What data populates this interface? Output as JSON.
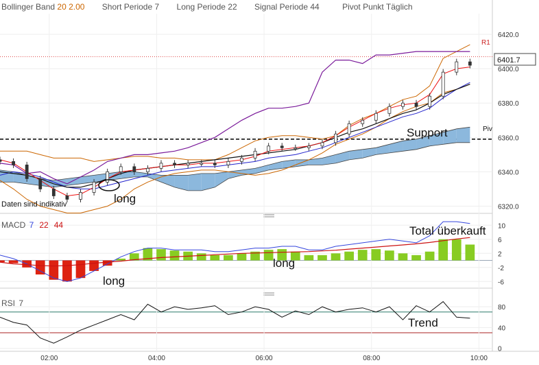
{
  "header": {
    "items": [
      {
        "name": "Bollinger Band",
        "values": [
          "20",
          "2.00"
        ]
      },
      {
        "name": "Short Periode",
        "values": [
          "7"
        ]
      },
      {
        "name": "Long Periode",
        "values": [
          "22"
        ]
      },
      {
        "name": "Signal Periode",
        "values": [
          "44"
        ]
      },
      {
        "name": "Pivot Punkt",
        "values": [
          "Täglich"
        ]
      }
    ]
  },
  "colors": {
    "candle": "#333333",
    "bb": "#cc6600",
    "ma_short": "#ee1111",
    "ma_long": "#2222cc",
    "kijun": "#111111",
    "purple": "#7a1a9a",
    "cloud_up": "#8cb8dd",
    "cloud_down": "#f0a0a0",
    "macd_pos": "#88cc22",
    "macd_neg": "#dd2211",
    "macd_line": "#3344dd",
    "signal_line": "#cc1111",
    "rsi_line": "#111111",
    "rsi_upper": "#2a7a6a",
    "rsi_lower": "#aa2222"
  },
  "price_panel": {
    "y_ticks": [
      6320,
      6340,
      6360,
      6380,
      6400,
      6420
    ],
    "y_tick_labels": [
      "6320.0",
      "6340.0",
      "6360.0",
      "6380.0",
      "6400.0",
      "6420.0"
    ],
    "ylim": [
      6317,
      6432
    ],
    "current_price": 6401.7,
    "current_price_label": "6401.7",
    "r1": {
      "label": "R1",
      "value": 6407
    },
    "pivot": {
      "label": "Piv",
      "value": 6359
    },
    "notes": {
      "disclaimer": "Daten sind indikativ"
    },
    "annotations": {
      "support": "Support",
      "long": "long"
    }
  },
  "macd_panel": {
    "label": "MACD",
    "params": [
      "7",
      "22",
      "44"
    ],
    "y_ticks": [
      -6,
      -2,
      2,
      6,
      10
    ],
    "y_tick_labels": [
      "-6",
      "-2",
      "2",
      "6",
      "10"
    ],
    "ylim": [
      -7.5,
      12
    ],
    "annotations": {
      "overbought": "Total überkauft",
      "long1": "long",
      "long2": "long"
    }
  },
  "rsi_panel": {
    "label": "RSI",
    "params": [
      "7"
    ],
    "y_ticks": [
      0,
      40,
      80
    ],
    "y_tick_labels": [
      "0",
      "40",
      "80"
    ],
    "ylim": [
      -3,
      100
    ],
    "upper": 70,
    "lower": 30,
    "annotations": {
      "trend": "Trend"
    }
  },
  "time_axis": {
    "start": "01:05",
    "end": "10:15",
    "ticks": [
      "02:00",
      "04:00",
      "06:00",
      "08:00",
      "10:00"
    ]
  },
  "chart_data": [
    {
      "type": "line",
      "title": "",
      "x": [
        "01:05",
        "01:20",
        "01:35",
        "01:50",
        "02:05",
        "02:20",
        "02:35",
        "02:50",
        "03:05",
        "03:20",
        "03:35",
        "03:50",
        "04:05",
        "04:20",
        "04:35",
        "04:50",
        "05:05",
        "05:20",
        "05:35",
        "05:50",
        "06:05",
        "06:20",
        "06:35",
        "06:50",
        "07:05",
        "07:20",
        "07:35",
        "07:50",
        "08:05",
        "08:20",
        "08:35",
        "08:50",
        "09:05",
        "09:20",
        "09:35",
        "09:50"
      ],
      "series": [
        {
          "name": "close",
          "values": [
            6346,
            6344,
            6336,
            6330,
            6326,
            6324,
            6328,
            6334,
            6340,
            6343,
            6340,
            6342,
            6345,
            6344,
            6345,
            6345,
            6344,
            6346,
            6348,
            6352,
            6355,
            6354,
            6354,
            6355,
            6357,
            6362,
            6368,
            6370,
            6374,
            6378,
            6380,
            6378,
            6384,
            6398,
            6404,
            6402
          ]
        },
        {
          "name": "bb_upper",
          "values": [
            6352,
            6352,
            6352,
            6350,
            6348,
            6348,
            6348,
            6346,
            6347,
            6348,
            6349,
            6349,
            6348,
            6348,
            6347,
            6347,
            6347,
            6350,
            6354,
            6358,
            6360,
            6361,
            6361,
            6360,
            6359,
            6361,
            6367,
            6371,
            6374,
            6378,
            6382,
            6384,
            6390,
            6406,
            6410,
            6414
          ]
        },
        {
          "name": "bb_lower",
          "values": [
            6335,
            6330,
            6324,
            6320,
            6318,
            6316,
            6316,
            6318,
            6320,
            6324,
            6330,
            6334,
            6337,
            6339,
            6340,
            6341,
            6341,
            6340,
            6339,
            6338,
            6339,
            6341,
            6344,
            6347,
            6351,
            6356,
            6359,
            6362,
            6366,
            6371,
            6375,
            6378,
            6380,
            6386,
            6388,
            6391
          ]
        },
        {
          "name": "ma_short",
          "values": [
            6347,
            6345,
            6340,
            6335,
            6330,
            6326,
            6327,
            6331,
            6336,
            6340,
            6341,
            6342,
            6343,
            6344,
            6344,
            6345,
            6345,
            6346,
            6347,
            6349,
            6352,
            6353,
            6354,
            6355,
            6357,
            6361,
            6366,
            6370,
            6374,
            6377,
            6379,
            6380,
            6385,
            6397,
            6400,
            6401
          ]
        },
        {
          "name": "ma_long",
          "values": [
            6338,
            6340,
            6339,
            6337,
            6334,
            6331,
            6330,
            6330,
            6332,
            6334,
            6336,
            6338,
            6340,
            6341,
            6342,
            6343,
            6343,
            6344,
            6345,
            6346,
            6348,
            6349,
            6350,
            6352,
            6354,
            6357,
            6360,
            6363,
            6366,
            6369,
            6372,
            6374,
            6377,
            6383,
            6388,
            6392
          ]
        },
        {
          "name": "kijun",
          "values": [
            6340,
            6339,
            6338,
            6336,
            6333,
            6331,
            6331,
            6333,
            6336,
            6339,
            6341,
            6342,
            6343,
            6344,
            6345,
            6346,
            6347,
            6348,
            6349,
            6350,
            6351,
            6352,
            6353,
            6355,
            6357,
            6360,
            6363,
            6365,
            6368,
            6371,
            6374,
            6376,
            6380,
            6385,
            6388,
            6391
          ]
        },
        {
          "name": "purple",
          "values": [
            6345,
            6344,
            6339,
            6340,
            6336,
            6333,
            6337,
            6341,
            6346,
            6348,
            6350,
            6350,
            6351,
            6352,
            6354,
            6357,
            6360,
            6365,
            6370,
            6374,
            6377,
            6377,
            6378,
            6380,
            6398,
            6405,
            6405,
            6403,
            6408,
            6408,
            6409,
            6410,
            6410,
            6410,
            6410,
            6410
          ]
        },
        {
          "name": "cloud_a",
          "values": [
            6341,
            6340,
            6338,
            6336,
            6335,
            6336,
            6337,
            6338,
            6339,
            6340,
            6340,
            6339,
            6338,
            6338,
            6338,
            6339,
            6339,
            6340,
            6341,
            6342,
            6344,
            6346,
            6347,
            6347,
            6348,
            6350,
            6352,
            6353,
            6354,
            6356,
            6358,
            6359,
            6361,
            6363,
            6365,
            6366
          ]
        },
        {
          "name": "cloud_b",
          "values": [
            6334,
            6334,
            6333,
            6332,
            6331,
            6332,
            6333,
            6334,
            6335,
            6336,
            6337,
            6337,
            6334,
            6331,
            6329,
            6329,
            6331,
            6336,
            6338,
            6339,
            6341,
            6342,
            6343,
            6344,
            6344,
            6345,
            6347,
            6348,
            6350,
            6351,
            6352,
            6353,
            6355,
            6356,
            6357,
            6357
          ]
        }
      ]
    },
    {
      "type": "bar",
      "title": "",
      "x": [
        "01:05",
        "01:20",
        "01:35",
        "01:50",
        "02:05",
        "02:20",
        "02:35",
        "02:50",
        "03:05",
        "03:20",
        "03:35",
        "03:50",
        "04:05",
        "04:20",
        "04:35",
        "04:50",
        "05:05",
        "05:20",
        "05:35",
        "05:50",
        "06:05",
        "06:20",
        "06:35",
        "06:50",
        "07:05",
        "07:20",
        "07:35",
        "07:50",
        "08:05",
        "08:20",
        "08:35",
        "08:50",
        "09:05",
        "09:20",
        "09:35",
        "09:50"
      ],
      "series": [
        {
          "name": "histogram",
          "values": [
            -0.5,
            -0.8,
            -2,
            -4,
            -5.5,
            -6,
            -5,
            -3,
            -1.5,
            0.5,
            2,
            3.5,
            3.2,
            2.8,
            2.5,
            2,
            1.5,
            1.5,
            2,
            2.5,
            3,
            3.2,
            2.5,
            1.5,
            1.5,
            2,
            2.5,
            3,
            3.2,
            2.8,
            2,
            1.5,
            2.5,
            6,
            6,
            4.5
          ]
        },
        {
          "name": "macd",
          "values": [
            1.5,
            0.5,
            -1,
            -3,
            -5,
            -6,
            -5,
            -3,
            -1,
            1,
            2.5,
            3.5,
            3.5,
            3,
            3,
            3,
            2.5,
            2.5,
            3,
            3.5,
            3.5,
            4,
            4,
            3,
            3,
            4,
            4.5,
            5,
            5.5,
            6,
            5.5,
            5,
            7,
            11,
            11,
            10.5
          ]
        },
        {
          "name": "signal",
          "values": [
            -0.5,
            -1,
            -1.2,
            -1.5,
            -1.6,
            -1.5,
            -1.2,
            -0.8,
            -0.5,
            -0.2,
            0.2,
            0.5,
            0.8,
            1,
            1.2,
            1.4,
            1.6,
            1.8,
            2,
            2.1,
            2.2,
            2.3,
            2.4,
            2.5,
            2.7,
            2.9,
            3.2,
            3.5,
            3.8,
            4.1,
            4.4,
            4.7,
            5.1,
            5.6,
            6.1,
            6.5
          ]
        }
      ]
    },
    {
      "type": "line",
      "title": "",
      "x": [
        "01:05",
        "01:20",
        "01:35",
        "01:50",
        "02:05",
        "02:20",
        "02:35",
        "02:50",
        "03:05",
        "03:20",
        "03:35",
        "03:50",
        "04:05",
        "04:20",
        "04:35",
        "04:50",
        "05:05",
        "05:20",
        "05:35",
        "05:50",
        "06:05",
        "06:20",
        "06:35",
        "06:50",
        "07:05",
        "07:20",
        "07:35",
        "07:50",
        "08:05",
        "08:20",
        "08:35",
        "08:50",
        "09:05",
        "09:20",
        "09:35",
        "09:50"
      ],
      "series": [
        {
          "name": "rsi",
          "values": [
            60,
            50,
            45,
            20,
            10,
            22,
            35,
            45,
            55,
            65,
            55,
            85,
            70,
            80,
            75,
            78,
            82,
            65,
            70,
            80,
            75,
            60,
            72,
            65,
            80,
            70,
            75,
            78,
            70,
            80,
            55,
            82,
            70,
            90,
            60,
            58
          ]
        }
      ]
    }
  ]
}
